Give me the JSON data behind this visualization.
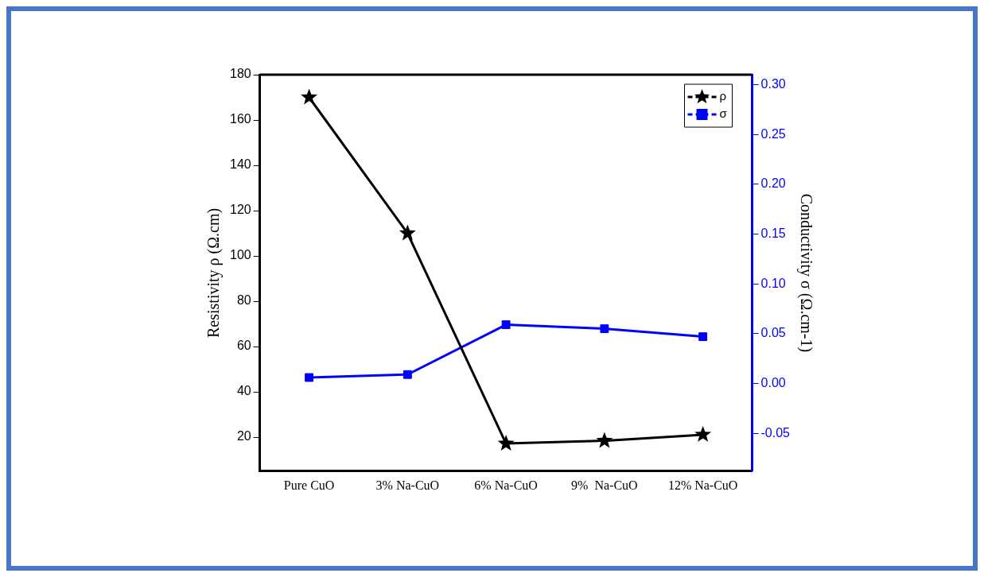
{
  "chart_data": {
    "type": "line",
    "categories": [
      "Pure CuO",
      "3% Na-CuO",
      "6% Na-CuO",
      "9%  Na-CuO",
      "12% Na-CuO"
    ],
    "ylabel": "Resistivity ρ (Ω.cm)",
    "y2label": "Conductivity σ (Ω.cm-1)",
    "series": [
      {
        "name": "ρ",
        "color": "#000000",
        "marker": "star",
        "values": [
          170,
          110,
          17.2,
          18.4,
          21.1
        ]
      },
      {
        "name": "σ",
        "color": "#0000ff",
        "marker": "square",
        "axis": "y2",
        "values": [
          0.006,
          0.009,
          0.059,
          0.055,
          0.047
        ]
      }
    ],
    "ylim": [
      5,
      180
    ],
    "yticks": [
      20,
      40,
      60,
      80,
      100,
      120,
      140,
      160,
      180
    ],
    "y2lim": [
      -0.088,
      0.31
    ],
    "y2ticks": [
      {
        "value": -0.05,
        "label": "-0.05"
      },
      {
        "value": 0,
        "label": "0.00"
      },
      {
        "value": 0.05,
        "label": "0.05"
      },
      {
        "value": 0.1,
        "label": "0.10"
      },
      {
        "value": 0.15,
        "label": "0.15"
      },
      {
        "value": 0.2,
        "label": "0.20"
      },
      {
        "value": 0.25,
        "label": "0.25"
      },
      {
        "value": 0.3,
        "label": "0.30"
      }
    ],
    "grid": false,
    "legend": "top right",
    "line_style": "solid"
  }
}
